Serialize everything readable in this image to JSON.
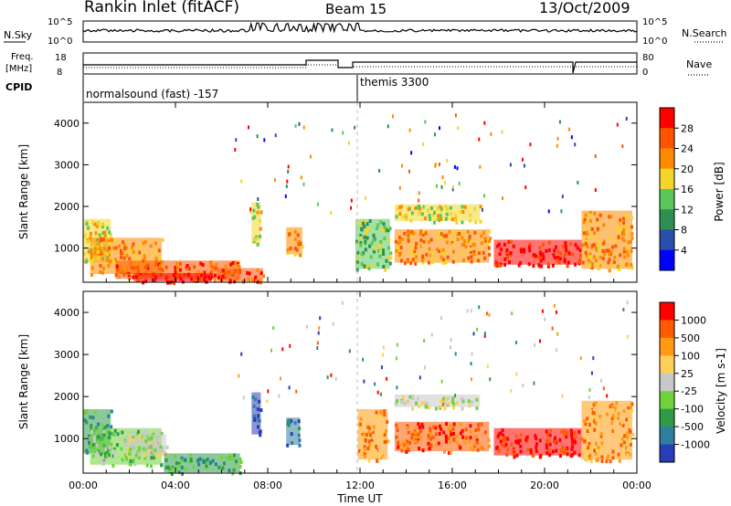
{
  "header": {
    "title": "Rankin Inlet (fitACF)",
    "beam": "Beam 15",
    "date": "13/Oct/2009"
  },
  "params": {
    "nsky_label": "N.Sky",
    "nsky_top": "10^5",
    "nsky_bottom": "10^0",
    "nsearch_label": "N.Search",
    "nsearch_top": "10^5",
    "nsearch_bottom": "10^0",
    "freq_label_1": "Freq.",
    "freq_label_2": "[MHz]",
    "freq_top": "18",
    "freq_bottom": "8",
    "nave_label": "Nave",
    "nave_top": "80",
    "nave_bottom": "0",
    "cpid_label": "CPID",
    "cpid_1": "normalsound (fast) -157",
    "cpid_2": "themis 3300"
  },
  "x_axis": {
    "label": "Time UT",
    "ticks": [
      "00:00",
      "04:00",
      "08:00",
      "12:00",
      "16:00",
      "20:00",
      "00:00"
    ]
  },
  "chart_data": [
    {
      "type": "heatmap",
      "title": "Power",
      "xlabel": "",
      "ylabel": "Slant Range [km]",
      "x_range_hours": [
        0,
        24
      ],
      "ylim": [
        180,
        4500
      ],
      "y_ticks": [
        1000,
        2000,
        3000,
        4000
      ],
      "colorbar": {
        "label": "Power [dB]",
        "ticks": [
          "28",
          "24",
          "20",
          "16",
          "12",
          "8",
          "4"
        ],
        "levels": [
          "#0000ff",
          "#2a4fa8",
          "#2f8f52",
          "#58c85a",
          "#f2d72a",
          "#ff8a00",
          "#ff5500",
          "#ff0000"
        ]
      },
      "bands": [
        {
          "t_start": 0.0,
          "t_end": 1.2,
          "r_low": 650,
          "r_high": 1700,
          "level": 4
        },
        {
          "t_start": 0.3,
          "t_end": 3.4,
          "r_low": 380,
          "r_high": 1250,
          "level": 5
        },
        {
          "t_start": 1.4,
          "t_end": 6.8,
          "r_low": 260,
          "r_high": 700,
          "level": 6
        },
        {
          "t_start": 2.2,
          "t_end": 5.5,
          "r_low": 200,
          "r_high": 400,
          "level": 7
        },
        {
          "t_start": 5.8,
          "t_end": 7.8,
          "r_low": 200,
          "r_high": 520,
          "level": 6
        },
        {
          "t_start": 7.3,
          "t_end": 7.7,
          "r_low": 1100,
          "r_high": 2100,
          "level": 4
        },
        {
          "t_start": 8.8,
          "t_end": 9.5,
          "r_low": 850,
          "r_high": 1500,
          "level": 5
        },
        {
          "t_start": 11.8,
          "t_end": 13.3,
          "r_low": 500,
          "r_high": 1700,
          "level": 3
        },
        {
          "t_start": 13.5,
          "t_end": 17.2,
          "r_low": 1650,
          "r_high": 2050,
          "level": 4
        },
        {
          "t_start": 13.5,
          "t_end": 17.6,
          "r_low": 650,
          "r_high": 1450,
          "level": 5
        },
        {
          "t_start": 17.8,
          "t_end": 21.6,
          "r_low": 600,
          "r_high": 1200,
          "level": 7
        },
        {
          "t_start": 21.6,
          "t_end": 23.8,
          "r_low": 500,
          "r_high": 1900,
          "level": 5
        }
      ]
    },
    {
      "type": "heatmap",
      "title": "Velocity",
      "xlabel": "Time UT",
      "ylabel": "Slant Range [km]",
      "x_range_hours": [
        0,
        24
      ],
      "ylim": [
        180,
        4500
      ],
      "y_ticks": [
        1000,
        2000,
        3000,
        4000
      ],
      "colorbar": {
        "label": "Velocity [m s-1]",
        "ticks": [
          "1000",
          "500",
          "100",
          "25",
          "-25",
          "-100",
          "-500",
          "-1000"
        ],
        "levels": [
          "#2a3db8",
          "#2f7fa0",
          "#2e9c47",
          "#6fd43a",
          "#c8c8c8",
          "#ffcf58",
          "#ff9a12",
          "#ff5a00",
          "#ff0000"
        ]
      },
      "bands": [
        {
          "t_start": 0.0,
          "t_end": 1.2,
          "r_low": 650,
          "r_high": 1700,
          "level": 2
        },
        {
          "t_start": 0.3,
          "t_end": 3.4,
          "r_low": 380,
          "r_high": 1250,
          "level": 3
        },
        {
          "t_start": 1.8,
          "t_end": 3.6,
          "r_low": 600,
          "r_high": 1100,
          "level": 4
        },
        {
          "t_start": 3.5,
          "t_end": 6.8,
          "r_low": 200,
          "r_high": 650,
          "level": 2
        },
        {
          "t_start": 7.3,
          "t_end": 7.7,
          "r_low": 1100,
          "r_high": 2100,
          "level": 0
        },
        {
          "t_start": 8.8,
          "t_end": 9.4,
          "r_low": 850,
          "r_high": 1500,
          "level": 1
        },
        {
          "t_start": 11.9,
          "t_end": 13.2,
          "r_low": 500,
          "r_high": 1700,
          "level": 6
        },
        {
          "t_start": 13.5,
          "t_end": 17.2,
          "r_low": 1750,
          "r_high": 2050,
          "level": 4
        },
        {
          "t_start": 13.5,
          "t_end": 17.6,
          "r_low": 700,
          "r_high": 1400,
          "level": 7
        },
        {
          "t_start": 17.8,
          "t_end": 21.6,
          "r_low": 600,
          "r_high": 1250,
          "level": 8
        },
        {
          "t_start": 21.6,
          "t_end": 23.8,
          "r_low": 500,
          "r_high": 1900,
          "level": 6
        }
      ]
    }
  ]
}
